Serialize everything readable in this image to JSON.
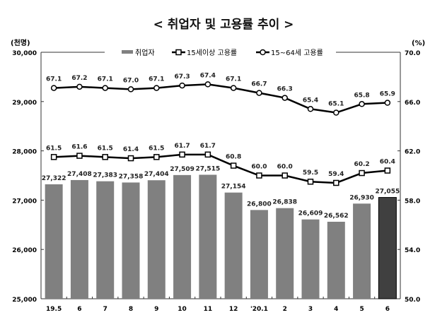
{
  "chart_data": {
    "type": "bar+line",
    "title": "< 취업자 및 고용률 추이 >",
    "ylabel_left": "(천명)",
    "ylabel_right": "(%)",
    "ylim_left": [
      25000,
      30000
    ],
    "ylim_right": [
      50.0,
      70.0
    ],
    "left_ticks": [
      "25,000",
      "26,000",
      "27,000",
      "28,000",
      "29,000",
      "30,000"
    ],
    "right_ticks": [
      "50.0",
      "54.0",
      "58.0",
      "62.0",
      "66.0",
      "70.0"
    ],
    "categories": [
      "19.5",
      "6",
      "7",
      "8",
      "9",
      "10",
      "11",
      "12",
      "'20.1",
      "2",
      "3",
      "4",
      "5",
      "6"
    ],
    "legend": {
      "placement": "top-center",
      "entries": [
        "취업자",
        "15세이상 고용률",
        "15~64세 고용률"
      ]
    },
    "series": [
      {
        "name": "취업자",
        "type": "bar",
        "axis": "left",
        "color": "#808080",
        "highlight_color": "#404040",
        "values": [
          27322,
          27408,
          27383,
          27358,
          27404,
          27509,
          27515,
          27154,
          26800,
          26838,
          26609,
          26562,
          26930,
          27055
        ],
        "labels": [
          "27,322",
          "27,408",
          "27,383",
          "27,358",
          "27,404",
          "27,509",
          "27,515",
          "27,154",
          "26,800",
          "26,838",
          "26,609",
          "26,562",
          "26,930",
          "27,055"
        ]
      },
      {
        "name": "15세이상 고용률",
        "type": "line",
        "marker": "square",
        "axis": "right",
        "values": [
          61.5,
          61.6,
          61.5,
          61.4,
          61.5,
          61.7,
          61.7,
          60.8,
          60.0,
          60.0,
          59.5,
          59.4,
          60.2,
          60.4
        ]
      },
      {
        "name": "15~64세 고용률",
        "type": "line",
        "marker": "circle",
        "axis": "right",
        "values": [
          67.1,
          67.2,
          67.1,
          67.0,
          67.1,
          67.3,
          67.4,
          67.1,
          66.7,
          66.3,
          65.4,
          65.1,
          65.8,
          65.9
        ]
      }
    ]
  }
}
